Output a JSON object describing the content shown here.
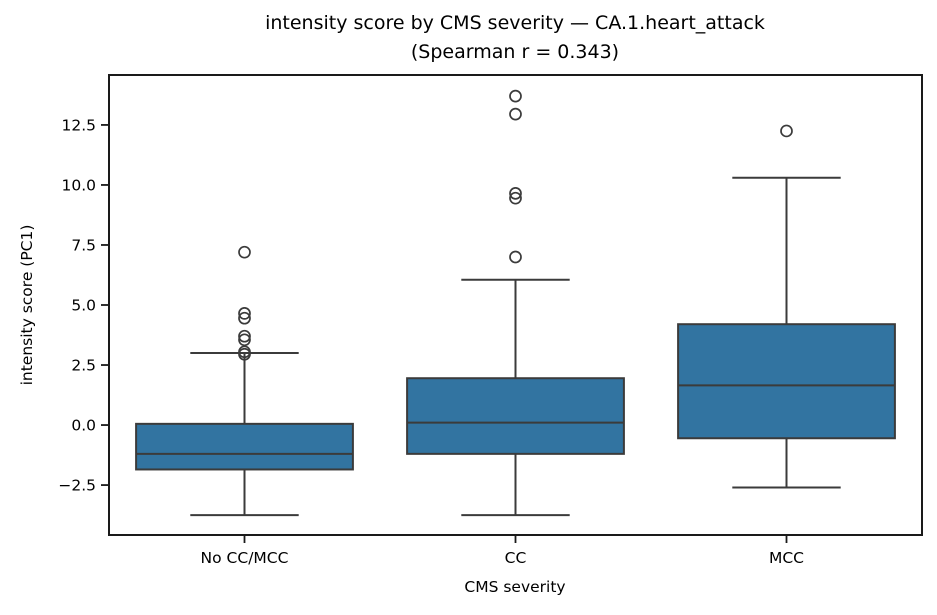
{
  "title": {
    "line1": "intensity score by CMS severity — CA.1.heart_attack",
    "line2": "(Spearman r = 0.343)"
  },
  "chart_data": {
    "type": "box",
    "title": "intensity score by CMS severity — CA.1.heart_attack (Spearman r = 0.343)",
    "spearman_r": 0.343,
    "xlabel": "CMS severity",
    "ylabel": "intensity score (PC1)",
    "categories": [
      "No CC/MCC",
      "CC",
      "MCC"
    ],
    "ylim": [
      -4.58,
      14.58
    ],
    "yticks": [
      -2.5,
      0.0,
      2.5,
      5.0,
      7.5,
      10.0,
      12.5
    ],
    "ytick_labels": [
      "−2.5",
      "0.0",
      "2.5",
      "5.0",
      "7.5",
      "10.0",
      "12.5"
    ],
    "grid": false,
    "legend_position": "none",
    "series": [
      {
        "category": "No CC/MCC",
        "whisker_low": -3.75,
        "q1": -1.85,
        "median": -1.2,
        "q3": 0.05,
        "whisker_high": 3.0,
        "outliers": [
          2.95,
          3.05,
          3.55,
          3.7,
          4.45,
          4.65,
          7.2
        ]
      },
      {
        "category": "CC",
        "whisker_low": -3.75,
        "q1": -1.2,
        "median": 0.1,
        "q3": 1.95,
        "whisker_high": 6.05,
        "outliers": [
          7.0,
          9.45,
          9.65,
          12.95,
          13.7
        ]
      },
      {
        "category": "MCC",
        "whisker_low": -2.6,
        "q1": -0.55,
        "median": 1.65,
        "q3": 4.2,
        "whisker_high": 10.3,
        "outliers": [
          12.25
        ]
      }
    ],
    "colors": {
      "box_fill": "#3274a1",
      "box_edge": "#3b3b3b",
      "median_line": "#3b3b3b",
      "whisker": "#3b3b3b",
      "outlier_edge": "#3b3b3b",
      "spine": "#1a1a1a",
      "text": "#000000"
    }
  }
}
